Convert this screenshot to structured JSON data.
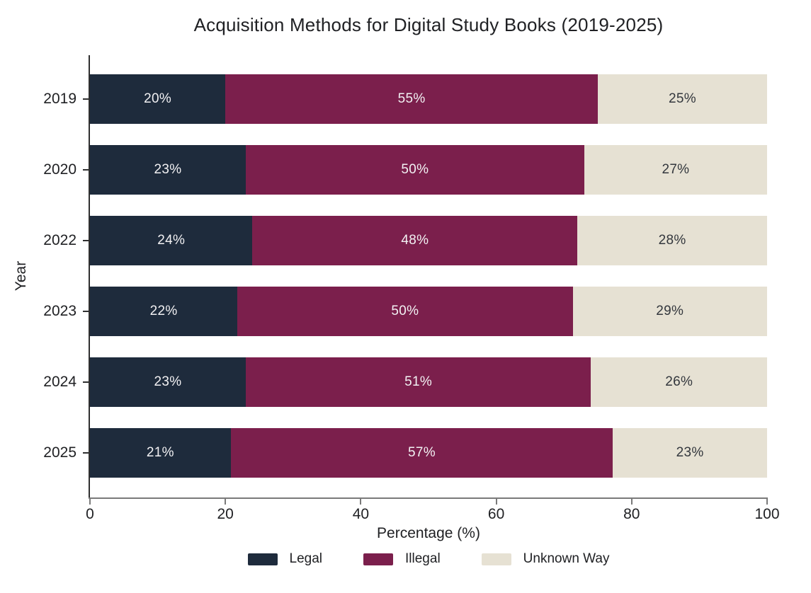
{
  "title": "Acquisition Methods for Digital Study Books (2019-2025)",
  "chart_data": {
    "type": "bar",
    "orientation": "horizontal",
    "stacked": true,
    "title": "Acquisition Methods for Digital Study Books (2019-2025)",
    "categories": [
      "2019",
      "2020",
      "2022",
      "2023",
      "2024",
      "2025"
    ],
    "series": [
      {
        "name": "Legal",
        "color": "#1e2b3c",
        "label_color": "#f2f1f3",
        "texture": "none",
        "values": [
          20,
          23,
          24,
          22,
          23,
          21
        ]
      },
      {
        "name": "Illegal",
        "color": "#7b1f4c",
        "label_color": "#f2f1f3",
        "texture": "none",
        "values": [
          55,
          50,
          48,
          50,
          51,
          57
        ]
      },
      {
        "name": "Unknown Way",
        "color": "#e6e1d3",
        "label_color": "#33373d",
        "texture": "dots",
        "values": [
          25,
          27,
          28,
          29,
          26,
          23
        ]
      }
    ],
    "value_suffix": "%",
    "xlabel": "Percentage (%)",
    "ylabel": "Year",
    "xticks": [
      0,
      20,
      40,
      60,
      80,
      100
    ],
    "xlim": [
      0,
      100
    ],
    "grid": false,
    "legend_position": "bottom"
  },
  "colors": {
    "background": "#ffffff",
    "text": "#202124",
    "y_spine": "#2f2f2f",
    "x_axis_line": "#7a7a7a"
  }
}
